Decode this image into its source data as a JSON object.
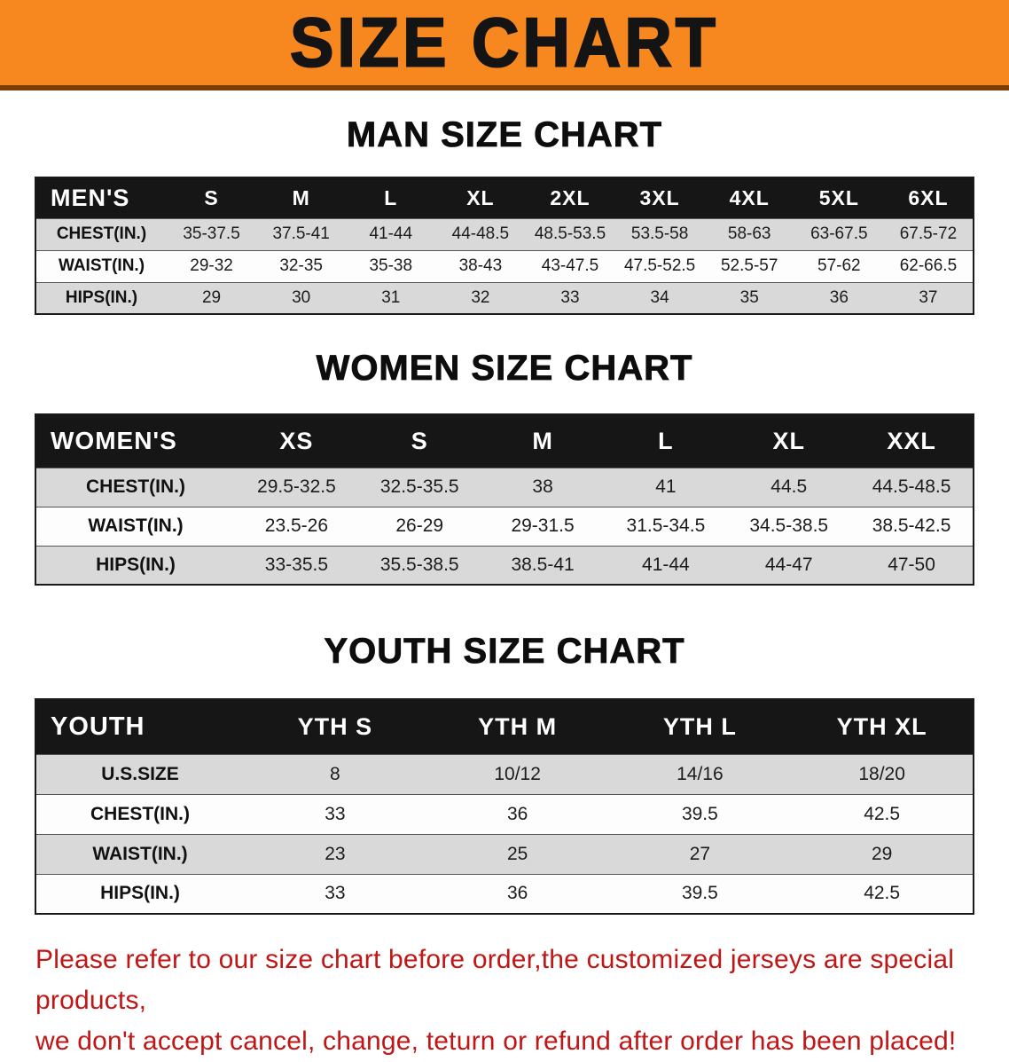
{
  "banner": {
    "title": "SIZE CHART"
  },
  "colors": {
    "banner_bg": "#f6881f",
    "banner_underline": "#7a3e06",
    "table_header_bg": "#161616",
    "table_header_text": "#ffffff",
    "row_shaded": "#d9d9d9",
    "row_plain": "#fdfdfd",
    "notice_text": "#c01616"
  },
  "sections": {
    "men": {
      "heading": "MAN SIZE CHART",
      "table": {
        "header": [
          "MEN'S",
          "S",
          "M",
          "L",
          "XL",
          "2XL",
          "3XL",
          "4XL",
          "5XL",
          "6XL"
        ],
        "rows": [
          [
            "CHEST(IN.)",
            "35-37.5",
            "37.5-41",
            "41-44",
            "44-48.5",
            "48.5-53.5",
            "53.5-58",
            "58-63",
            "63-67.5",
            "67.5-72"
          ],
          [
            "WAIST(IN.)",
            "29-32",
            "32-35",
            "35-38",
            "38-43",
            "43-47.5",
            "47.5-52.5",
            "52.5-57",
            "57-62",
            "62-66.5"
          ],
          [
            "HIPS(IN.)",
            "29",
            "30",
            "31",
            "32",
            "33",
            "34",
            "35",
            "36",
            "37"
          ]
        ]
      }
    },
    "women": {
      "heading": "WOMEN SIZE CHART",
      "table": {
        "header": [
          "WOMEN'S",
          "XS",
          "S",
          "M",
          "L",
          "XL",
          "XXL"
        ],
        "rows": [
          [
            "CHEST(IN.)",
            "29.5-32.5",
            "32.5-35.5",
            "38",
            "41",
            "44.5",
            "44.5-48.5"
          ],
          [
            "WAIST(IN.)",
            "23.5-26",
            "26-29",
            "29-31.5",
            "31.5-34.5",
            "34.5-38.5",
            "38.5-42.5"
          ],
          [
            "HIPS(IN.)",
            "33-35.5",
            "35.5-38.5",
            "38.5-41",
            "41-44",
            "44-47",
            "47-50"
          ]
        ]
      }
    },
    "youth": {
      "heading": "YOUTH SIZE CHART",
      "table": {
        "header": [
          "YOUTH",
          "YTH S",
          "YTH M",
          "YTH L",
          "YTH XL"
        ],
        "rows": [
          [
            "U.S.SIZE",
            "8",
            "10/12",
            "14/16",
            "18/20"
          ],
          [
            "CHEST(IN.)",
            "33",
            "36",
            "39.5",
            "42.5"
          ],
          [
            "WAIST(IN.)",
            "23",
            "25",
            "27",
            "29"
          ],
          [
            "HIPS(IN.)",
            "33",
            "36",
            "39.5",
            "42.5"
          ]
        ]
      }
    }
  },
  "footer": {
    "line1": "Please refer to our size chart before order,the customized jerseys are special products,",
    "line2": "we don't accept cancel, change, teturn or refund after order has been placed!"
  }
}
